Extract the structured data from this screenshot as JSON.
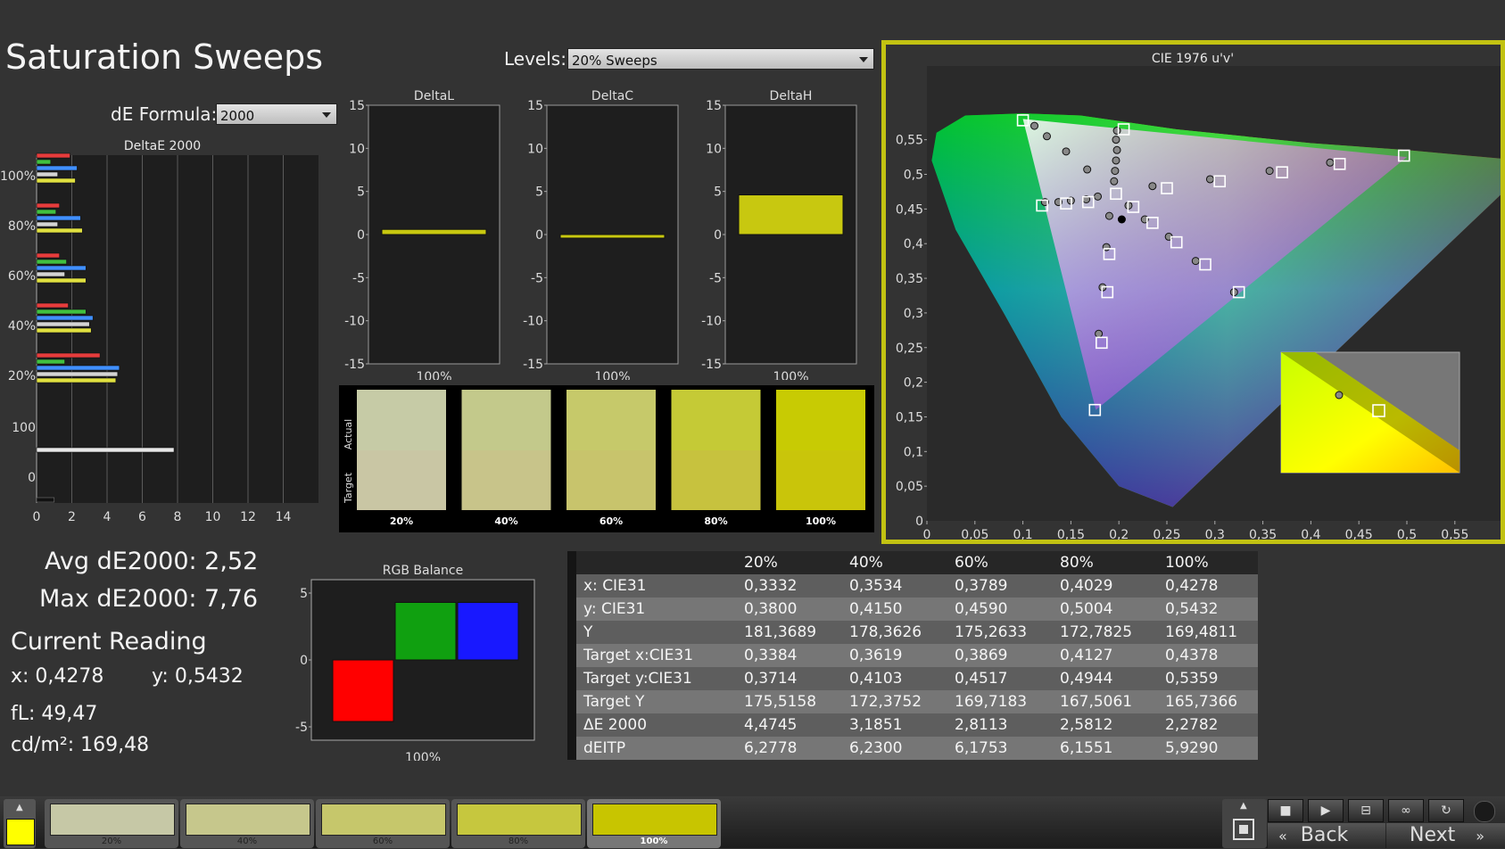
{
  "title": "Saturation Sweeps",
  "levels": {
    "label": "Levels:",
    "value": "20% Sweeps"
  },
  "de_formula": {
    "label": "dE Formula:",
    "value": "2000"
  },
  "deltae_chart": {
    "title": "DeltaE 2000",
    "row_labels": [
      "100%",
      "80%",
      "60%",
      "40%",
      "20%",
      "100",
      "0"
    ],
    "x_ticks": [
      "0",
      "2",
      "4",
      "6",
      "8",
      "10",
      "12",
      "14"
    ],
    "bar_values": {
      "g100": [
        1.9,
        0.8,
        2.3,
        1.2,
        2.2
      ],
      "g80": [
        1.3,
        1.1,
        2.5,
        1.2,
        2.6
      ],
      "g60": [
        1.3,
        1.7,
        2.8,
        1.6,
        2.8
      ],
      "g40": [
        1.8,
        2.8,
        3.2,
        3.0,
        3.1
      ],
      "g20": [
        3.6,
        1.6,
        4.7,
        4.6,
        4.5
      ],
      "white100": [
        7.8
      ],
      "black0": [
        1.0
      ]
    }
  },
  "delta_charts": [
    {
      "title": "DeltaL",
      "value": 0.6,
      "label": "100%"
    },
    {
      "title": "DeltaC",
      "value": -0.2,
      "label": "100%"
    },
    {
      "title": "DeltaH",
      "value": 4.6,
      "label": "100%"
    }
  ],
  "delta_yticks": [
    "15",
    "10",
    "5",
    "0",
    "-5",
    "-10",
    "-15"
  ],
  "swatches": {
    "actual_label": "Actual",
    "target_label": "Target",
    "items": [
      {
        "label": "20%",
        "actual": "#c6cba6",
        "target": "#c9c6a4"
      },
      {
        "label": "40%",
        "actual": "#c3c98b",
        "target": "#c8c48a"
      },
      {
        "label": "60%",
        "actual": "#c6c96a",
        "target": "#c8c46c"
      },
      {
        "label": "80%",
        "actual": "#c5ca36",
        "target": "#c7c23e"
      },
      {
        "label": "100%",
        "actual": "#c8cb03",
        "target": "#c9c50a"
      }
    ]
  },
  "cie": {
    "title": "CIE 1976 u'v'",
    "x_ticks": [
      "0",
      "0,05",
      "0,1",
      "0,15",
      "0,2",
      "0,25",
      "0,3",
      "0,35",
      "0,4",
      "0,45",
      "0,5",
      "0,55"
    ],
    "y_ticks": [
      "0,05",
      "0,1",
      "0,15",
      "0,2",
      "0,25",
      "0,3",
      "0,35",
      "0,4",
      "0,45",
      "0,5",
      "0,55"
    ],
    "y_zero": "0"
  },
  "readings": {
    "avg": "Avg dE2000: 2,52",
    "max": "Max dE2000: 7,76",
    "current_title": "Current Reading",
    "x": "x: 0,4278",
    "y": "y: 0,5432",
    "fl": "fL: 49,47",
    "cdm": "cd/m²: 169,48"
  },
  "rgb_balance": {
    "title": "RGB Balance",
    "y_ticks": [
      "5",
      "0",
      "-5"
    ],
    "label": "100%",
    "values": {
      "red": -4.6,
      "green": 4.3,
      "blue": 4.3
    }
  },
  "table": {
    "headers": [
      "",
      "20%",
      "40%",
      "60%",
      "80%",
      "100%"
    ],
    "rows": [
      [
        "x: CIE31",
        "0,3332",
        "0,3534",
        "0,3789",
        "0,4029",
        "0,4278"
      ],
      [
        "y: CIE31",
        "0,3800",
        "0,4150",
        "0,4590",
        "0,5004",
        "0,5432"
      ],
      [
        "Y",
        "181,3689",
        "178,3626",
        "175,2633",
        "172,7825",
        "169,4811"
      ],
      [
        "Target x:CIE31",
        "0,3384",
        "0,3619",
        "0,3869",
        "0,4127",
        "0,4378"
      ],
      [
        "Target y:CIE31",
        "0,3714",
        "0,4103",
        "0,4517",
        "0,4944",
        "0,5359"
      ],
      [
        "Target Y",
        "175,5158",
        "172,3752",
        "169,7183",
        "167,5061",
        "165,7366"
      ],
      [
        "ΔE 2000",
        "4,4745",
        "3,1851",
        "2,8113",
        "2,5812",
        "2,2782"
      ],
      [
        "dEITP",
        "6,2778",
        "6,2300",
        "6,1753",
        "6,1551",
        "5,9290"
      ]
    ]
  },
  "bottom": {
    "tiles": [
      {
        "label": "20%",
        "color": "#c6c8a6"
      },
      {
        "label": "40%",
        "color": "#c6c78c"
      },
      {
        "label": "60%",
        "color": "#c6c76b"
      },
      {
        "label": "80%",
        "color": "#c6c73e"
      },
      {
        "label": "100%",
        "color": "#c8c500"
      }
    ],
    "current_color": "#ffff00",
    "back": "Back",
    "next": "Next"
  }
}
